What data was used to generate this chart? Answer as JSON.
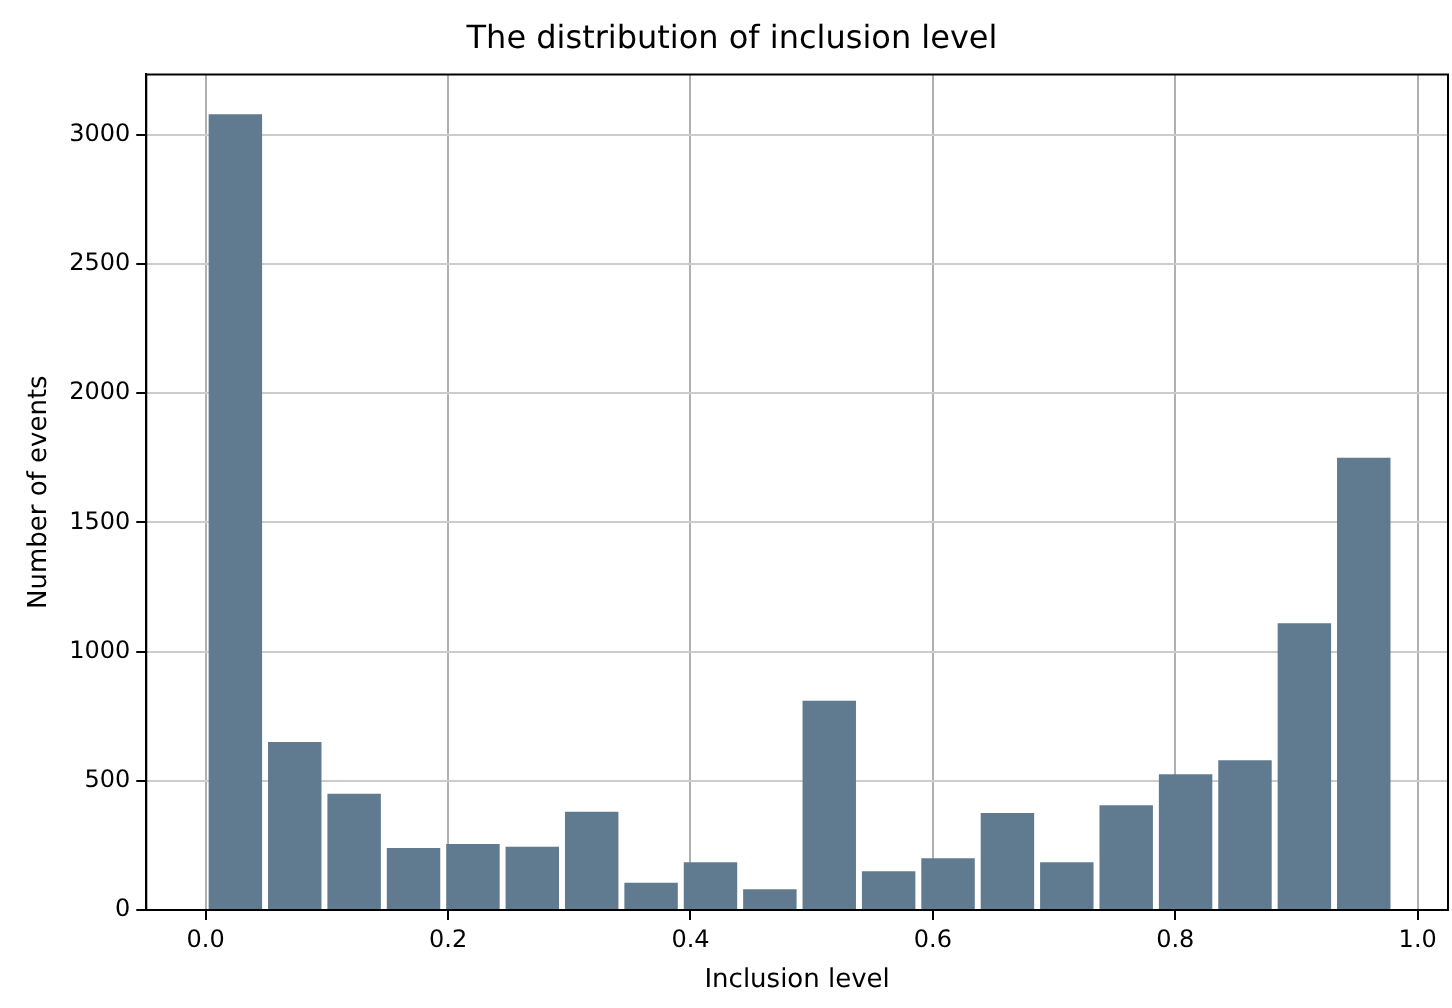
{
  "chart_data": {
    "type": "histogram",
    "title": "The distribution of inclusion level",
    "xlabel": "Inclusion level",
    "ylabel": "Number of events",
    "bins": [
      0,
      0.049,
      0.098,
      0.147,
      0.196,
      0.245,
      0.294,
      0.343,
      0.392,
      0.441,
      0.49,
      0.539,
      0.588,
      0.637,
      0.686,
      0.735,
      0.784,
      0.833,
      0.882,
      0.931,
      0.98
    ],
    "values": [
      3080,
      650,
      450,
      240,
      255,
      245,
      380,
      105,
      185,
      80,
      810,
      150,
      200,
      375,
      185,
      405,
      525,
      580,
      1110,
      1750
    ],
    "color": "#607b8f",
    "xlim": [
      -0.049,
      1.025
    ],
    "xticks": [
      {
        "value": 0,
        "label": "0.0"
      },
      {
        "value": 0.2,
        "label": "0.2"
      },
      {
        "value": 0.4,
        "label": "0.4"
      },
      {
        "value": 0.6,
        "label": "0.6"
      },
      {
        "value": 0.8,
        "label": "0.8"
      },
      {
        "value": 1,
        "label": "1.0"
      }
    ],
    "ylim": [
      0,
      3234
    ],
    "yticks": [
      0,
      500,
      1000,
      1500,
      2000,
      2500,
      3000
    ],
    "grid": true
  }
}
